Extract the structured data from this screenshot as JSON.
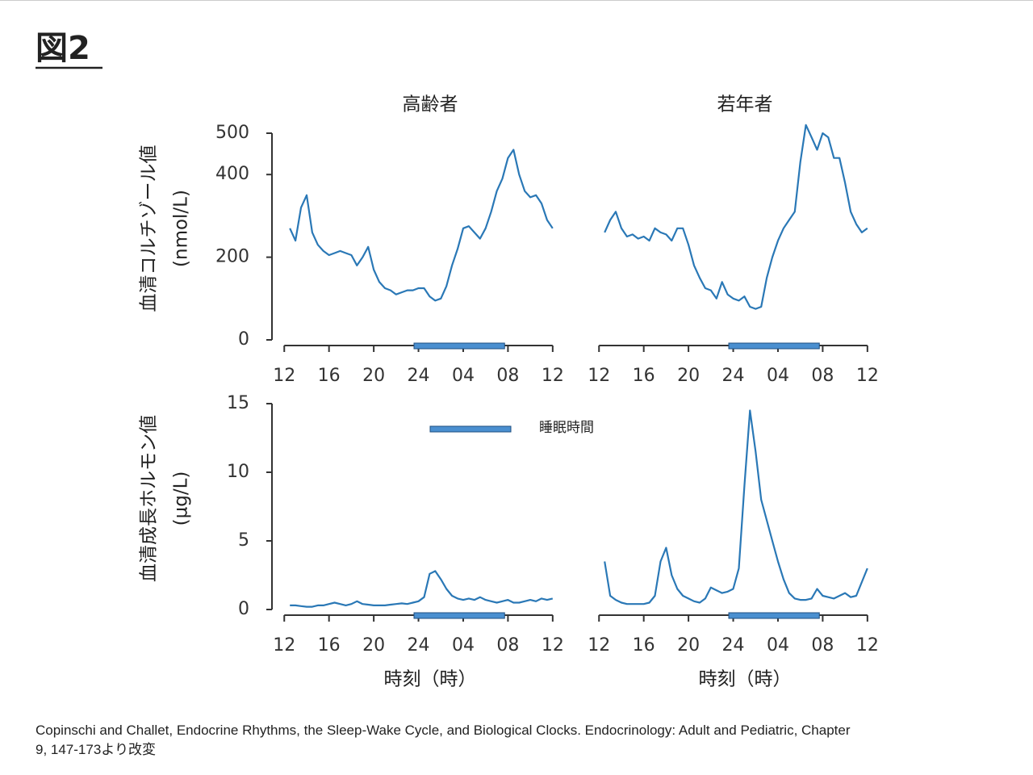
{
  "title": "図2",
  "legend": {
    "label": "睡眠時間",
    "color": "#4a8fd0"
  },
  "citation": [
    "Copinschi and Challet, Endocrine Rhythms, the Sleep-Wake Cycle, and Biological Clocks. Endocrinology: Adult and Pediatric, Chapter",
    "9, 147-173より改変"
  ],
  "chart_data": [
    {
      "type": "line",
      "title": "高齢者",
      "ylabel": [
        "血清コルチゾール値",
        "(nmol/L)"
      ],
      "color": "#2a78b6",
      "xlim": [
        10.9,
        36.3
      ],
      "ylim": [
        0,
        500
      ],
      "xticks": [
        12,
        16,
        20,
        24,
        {
          "value": 28,
          "label": "04"
        },
        {
          "value": 32,
          "label": "08"
        },
        {
          "value": 36,
          "label": "12"
        }
      ],
      "yticks": [
        0,
        200,
        400,
        500
      ],
      "sleep": [
        23.6,
        31.7
      ],
      "x": [
        12.5,
        13,
        13.5,
        14,
        14.5,
        15,
        15.5,
        16,
        16.5,
        17,
        17.5,
        18,
        18.5,
        19,
        19.5,
        20,
        20.5,
        21,
        21.5,
        22,
        22.5,
        23,
        23.5,
        24,
        24.5,
        25,
        25.5,
        26,
        26.5,
        27,
        27.5,
        28,
        28.5,
        29,
        29.5,
        30,
        30.5,
        31,
        31.5,
        32,
        32.5,
        33,
        33.5,
        34,
        34.5,
        35,
        35.5,
        36
      ],
      "values": [
        270,
        240,
        320,
        350,
        260,
        230,
        215,
        205,
        210,
        215,
        210,
        205,
        180,
        200,
        225,
        170,
        140,
        125,
        120,
        110,
        115,
        120,
        120,
        125,
        125,
        105,
        95,
        100,
        130,
        180,
        220,
        270,
        275,
        260,
        245,
        270,
        310,
        360,
        390,
        440,
        460,
        400,
        360,
        345,
        350,
        330,
        290,
        270
      ]
    },
    {
      "type": "line",
      "title": "若年者",
      "color": "#2a78b6",
      "xlim": [
        10.9,
        36.3
      ],
      "ylim": [
        0,
        500
      ],
      "xticks": [
        12,
        16,
        20,
        24,
        {
          "value": 28,
          "label": "04"
        },
        {
          "value": 32,
          "label": "08"
        },
        {
          "value": 36,
          "label": "12"
        }
      ],
      "sleep": [
        23.6,
        31.7
      ],
      "x": [
        12.5,
        13,
        13.5,
        14,
        14.5,
        15,
        15.5,
        16,
        16.5,
        17,
        17.5,
        18,
        18.5,
        19,
        19.5,
        20,
        20.5,
        21,
        21.5,
        22,
        22.5,
        23,
        23.5,
        24,
        24.5,
        25,
        25.5,
        26,
        26.5,
        27,
        27.5,
        28,
        28.5,
        29,
        29.5,
        30,
        30.5,
        31,
        31.5,
        32,
        32.5,
        33,
        33.5,
        34,
        34.5,
        35,
        35.5,
        36
      ],
      "values": [
        260,
        290,
        310,
        270,
        250,
        255,
        245,
        250,
        240,
        270,
        260,
        255,
        240,
        270,
        270,
        230,
        180,
        150,
        125,
        120,
        100,
        140,
        110,
        100,
        95,
        105,
        80,
        75,
        80,
        150,
        200,
        240,
        270,
        290,
        310,
        430,
        520,
        490,
        460,
        500,
        490,
        440,
        440,
        380,
        310,
        280,
        260,
        270
      ]
    },
    {
      "type": "line",
      "xlabel": "時刻（時）",
      "ylabel": [
        "血清成長ホルモン値",
        "(µg/L)"
      ],
      "color": "#2a78b6",
      "xlim": [
        10.9,
        36.3
      ],
      "ylim": [
        0,
        15
      ],
      "xticks": [
        12,
        16,
        20,
        24,
        {
          "value": 28,
          "label": "04"
        },
        {
          "value": 32,
          "label": "08"
        },
        {
          "value": 36,
          "label": "12"
        }
      ],
      "yticks": [
        0,
        5,
        10,
        15
      ],
      "sleep": [
        23.6,
        31.7
      ],
      "x": [
        12.5,
        13,
        13.5,
        14,
        14.5,
        15,
        15.5,
        16,
        16.5,
        17,
        17.5,
        18,
        18.5,
        19,
        19.5,
        20,
        20.5,
        21,
        21.5,
        22,
        22.5,
        23,
        23.5,
        24,
        24.5,
        25,
        25.5,
        26,
        26.5,
        27,
        27.5,
        28,
        28.5,
        29,
        29.5,
        30,
        30.5,
        31,
        31.5,
        32,
        32.5,
        33,
        33.5,
        34,
        34.5,
        35,
        35.5,
        36
      ],
      "values": [
        0.3,
        0.3,
        0.25,
        0.2,
        0.2,
        0.3,
        0.3,
        0.4,
        0.5,
        0.4,
        0.3,
        0.4,
        0.6,
        0.4,
        0.35,
        0.3,
        0.3,
        0.3,
        0.35,
        0.4,
        0.45,
        0.4,
        0.5,
        0.6,
        0.9,
        2.6,
        2.8,
        2.2,
        1.5,
        1.0,
        0.8,
        0.7,
        0.8,
        0.7,
        0.9,
        0.7,
        0.6,
        0.5,
        0.6,
        0.7,
        0.5,
        0.5,
        0.6,
        0.7,
        0.6,
        0.8,
        0.7,
        0.8
      ]
    },
    {
      "type": "line",
      "xlabel": "時刻（時）",
      "color": "#2a78b6",
      "xlim": [
        10.9,
        36.3
      ],
      "ylim": [
        0,
        15
      ],
      "xticks": [
        12,
        16,
        20,
        24,
        {
          "value": 28,
          "label": "04"
        },
        {
          "value": 32,
          "label": "08"
        },
        {
          "value": 36,
          "label": "12"
        }
      ],
      "sleep": [
        23.6,
        31.7
      ],
      "x": [
        12.5,
        13,
        13.5,
        14,
        14.5,
        15,
        15.5,
        16,
        16.5,
        17,
        17.5,
        18,
        18.5,
        19,
        19.5,
        20,
        20.5,
        21,
        21.5,
        22,
        22.5,
        23,
        23.5,
        24,
        24.5,
        25,
        25.5,
        26,
        26.5,
        27,
        27.5,
        28,
        28.5,
        29,
        29.5,
        30,
        30.5,
        31,
        31.5,
        32,
        32.5,
        33,
        33.5,
        34,
        34.5,
        35,
        35.5,
        36
      ],
      "values": [
        3.5,
        1.0,
        0.7,
        0.5,
        0.4,
        0.4,
        0.4,
        0.4,
        0.5,
        1.0,
        3.5,
        4.5,
        2.5,
        1.5,
        1.0,
        0.8,
        0.6,
        0.5,
        0.8,
        1.6,
        1.4,
        1.2,
        1.3,
        1.5,
        3.0,
        9,
        14.5,
        11.5,
        8,
        6.5,
        5,
        3.5,
        2.2,
        1.2,
        0.8,
        0.7,
        0.7,
        0.8,
        1.5,
        1.0,
        0.9,
        0.8,
        1.0,
        1.2,
        0.9,
        1.0,
        2.0,
        3.0
      ]
    }
  ]
}
